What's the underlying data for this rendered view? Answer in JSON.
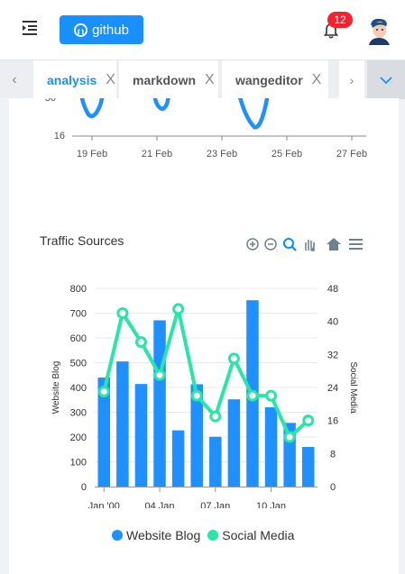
{
  "header": {
    "github_label": "github",
    "notification_count": "12"
  },
  "tabs": [
    {
      "label": "analysis",
      "close": "X",
      "active": true
    },
    {
      "label": "markdown",
      "close": "X"
    },
    {
      "label": "wangeditor",
      "close": "X"
    }
  ],
  "top_chart": {
    "y_tick": "16",
    "x_ticks": [
      "19 Feb",
      "21 Feb",
      "23 Feb",
      "25 Feb",
      "27 Feb"
    ]
  },
  "chart_data": {
    "type": "bar",
    "title": "Traffic Sources",
    "ylabel": "Website Blog",
    "y2label": "Social Media",
    "ylim": [
      0,
      800
    ],
    "y2lim": [
      0,
      48
    ],
    "y_ticks": [
      "0",
      "100",
      "200",
      "300",
      "400",
      "500",
      "600",
      "700",
      "800"
    ],
    "y2_ticks": [
      "0",
      "8",
      "16",
      "24",
      "32",
      "40",
      "48"
    ],
    "x_tick_labels": [
      "Jan '00",
      "04 Jan",
      "07 Jan",
      "10 Jan"
    ],
    "series": [
      {
        "name": "Website Blog",
        "type": "bar",
        "color": "#1e90ff",
        "values": [
          440,
          505,
          414,
          671,
          227,
          413,
          201,
          352,
          752,
          320,
          257,
          160
        ]
      },
      {
        "name": "Social Media",
        "type": "line",
        "color": "#26e7a6",
        "values": [
          23,
          42,
          35,
          27,
          43,
          22,
          17,
          31,
          22,
          22,
          12,
          16
        ]
      }
    ],
    "legend": "bottom"
  },
  "toolbar_icons": [
    "zoom-in-icon",
    "zoom-out-icon",
    "selection-zoom-icon",
    "pan-icon",
    "reset-home-icon",
    "menu-icon"
  ]
}
